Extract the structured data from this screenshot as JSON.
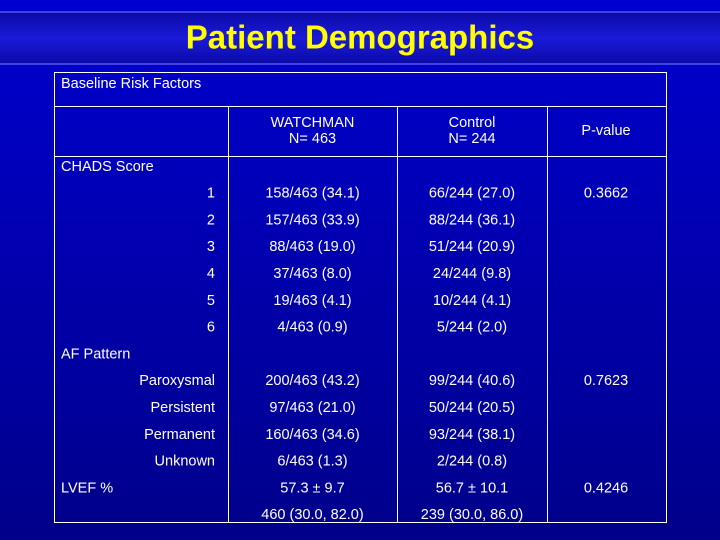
{
  "title": "Patient Demographics",
  "table": {
    "caption": "Baseline Risk Factors",
    "columns": [
      [
        "WATCHMAN",
        "N= 463"
      ],
      [
        "Control",
        "N= 244"
      ],
      [
        "P-value"
      ]
    ],
    "groups": [
      {
        "label": "CHADS Score",
        "rows": [
          {
            "label": "1",
            "cells": [
              "158/463 (34.1)",
              "66/244 (27.0)",
              "0.3662"
            ]
          },
          {
            "label": "2",
            "cells": [
              "157/463 (33.9)",
              "88/244 (36.1)"
            ]
          },
          {
            "label": "3",
            "cells": [
              "88/463 (19.0)",
              "51/244 (20.9)"
            ]
          },
          {
            "label": "4",
            "cells": [
              "37/463 (8.0)",
              "24/244 (9.8)"
            ]
          },
          {
            "label": "5",
            "cells": [
              "19/463 (4.1)",
              "10/244 (4.1)"
            ]
          },
          {
            "label": "6",
            "cells": [
              "4/463 (0.9)",
              "5/244 (2.0)"
            ]
          }
        ]
      },
      {
        "label": "AF Pattern",
        "rows": [
          {
            "label": "Paroxysmal",
            "cells": [
              "200/463 (43.2)",
              "99/244 (40.6)",
              "0.7623"
            ]
          },
          {
            "label": "Persistent",
            "cells": [
              "97/463 (21.0)",
              "50/244 (20.5)"
            ]
          },
          {
            "label": "Permanent",
            "cells": [
              "160/463 (34.6)",
              "93/244 (38.1)"
            ]
          },
          {
            "label": "Unknown",
            "cells": [
              "6/463 (1.3)",
              "2/244 (0.8)"
            ]
          }
        ]
      },
      {
        "label": "LVEF %",
        "rows": [
          {
            "cells": [
              "57.3 ± 9.7",
              "56.7 ± 10.1",
              "0.4246"
            ]
          },
          {
            "cells": [
              "460 (30.0, 82.0)",
              "239 (30.0, 86.0)"
            ]
          }
        ]
      }
    ]
  }
}
